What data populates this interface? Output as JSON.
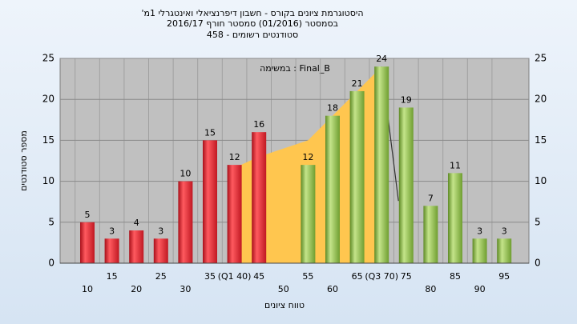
{
  "chart_data": {
    "type": "bar",
    "title": [
      "היסטוגרמת ציונים בקורס - חשבון דיפרנציאלי ואינטגרלי 1מ'",
      "בסמסטר (01/2016)  סמסטר חורף 2016/17",
      "סטודנטים רשומים - 458"
    ],
    "annotation": "Final_B : במשימה",
    "x_label": "טווח ציונים",
    "y_label": "מספר סטודנטים",
    "categories": [
      "10",
      "15",
      "20",
      "25",
      "30",
      "35",
      "(Q1 40)",
      "45",
      "50",
      "55",
      "60",
      "65",
      "(Q3 70)",
      "75",
      "80",
      "85",
      "90",
      "95"
    ],
    "values": [
      5,
      3,
      4,
      3,
      10,
      15,
      12,
      16,
      null,
      12,
      18,
      21,
      24,
      19,
      7,
      11,
      3,
      3
    ],
    "colors": [
      "red",
      "red",
      "red",
      "red",
      "red",
      "red",
      "red",
      "red",
      null,
      "green",
      "green",
      "green",
      "green",
      "green",
      "green",
      "green",
      "green",
      "green"
    ],
    "area": {
      "color": "#ffc64f",
      "values": [
        null,
        null,
        null,
        null,
        null,
        null,
        12,
        13,
        14,
        15,
        18,
        21,
        24,
        null,
        null,
        null,
        null,
        null
      ]
    },
    "ylim": [
      0,
      25
    ],
    "yticks": [
      0,
      5,
      10,
      15,
      20,
      25
    ],
    "grid": true
  }
}
